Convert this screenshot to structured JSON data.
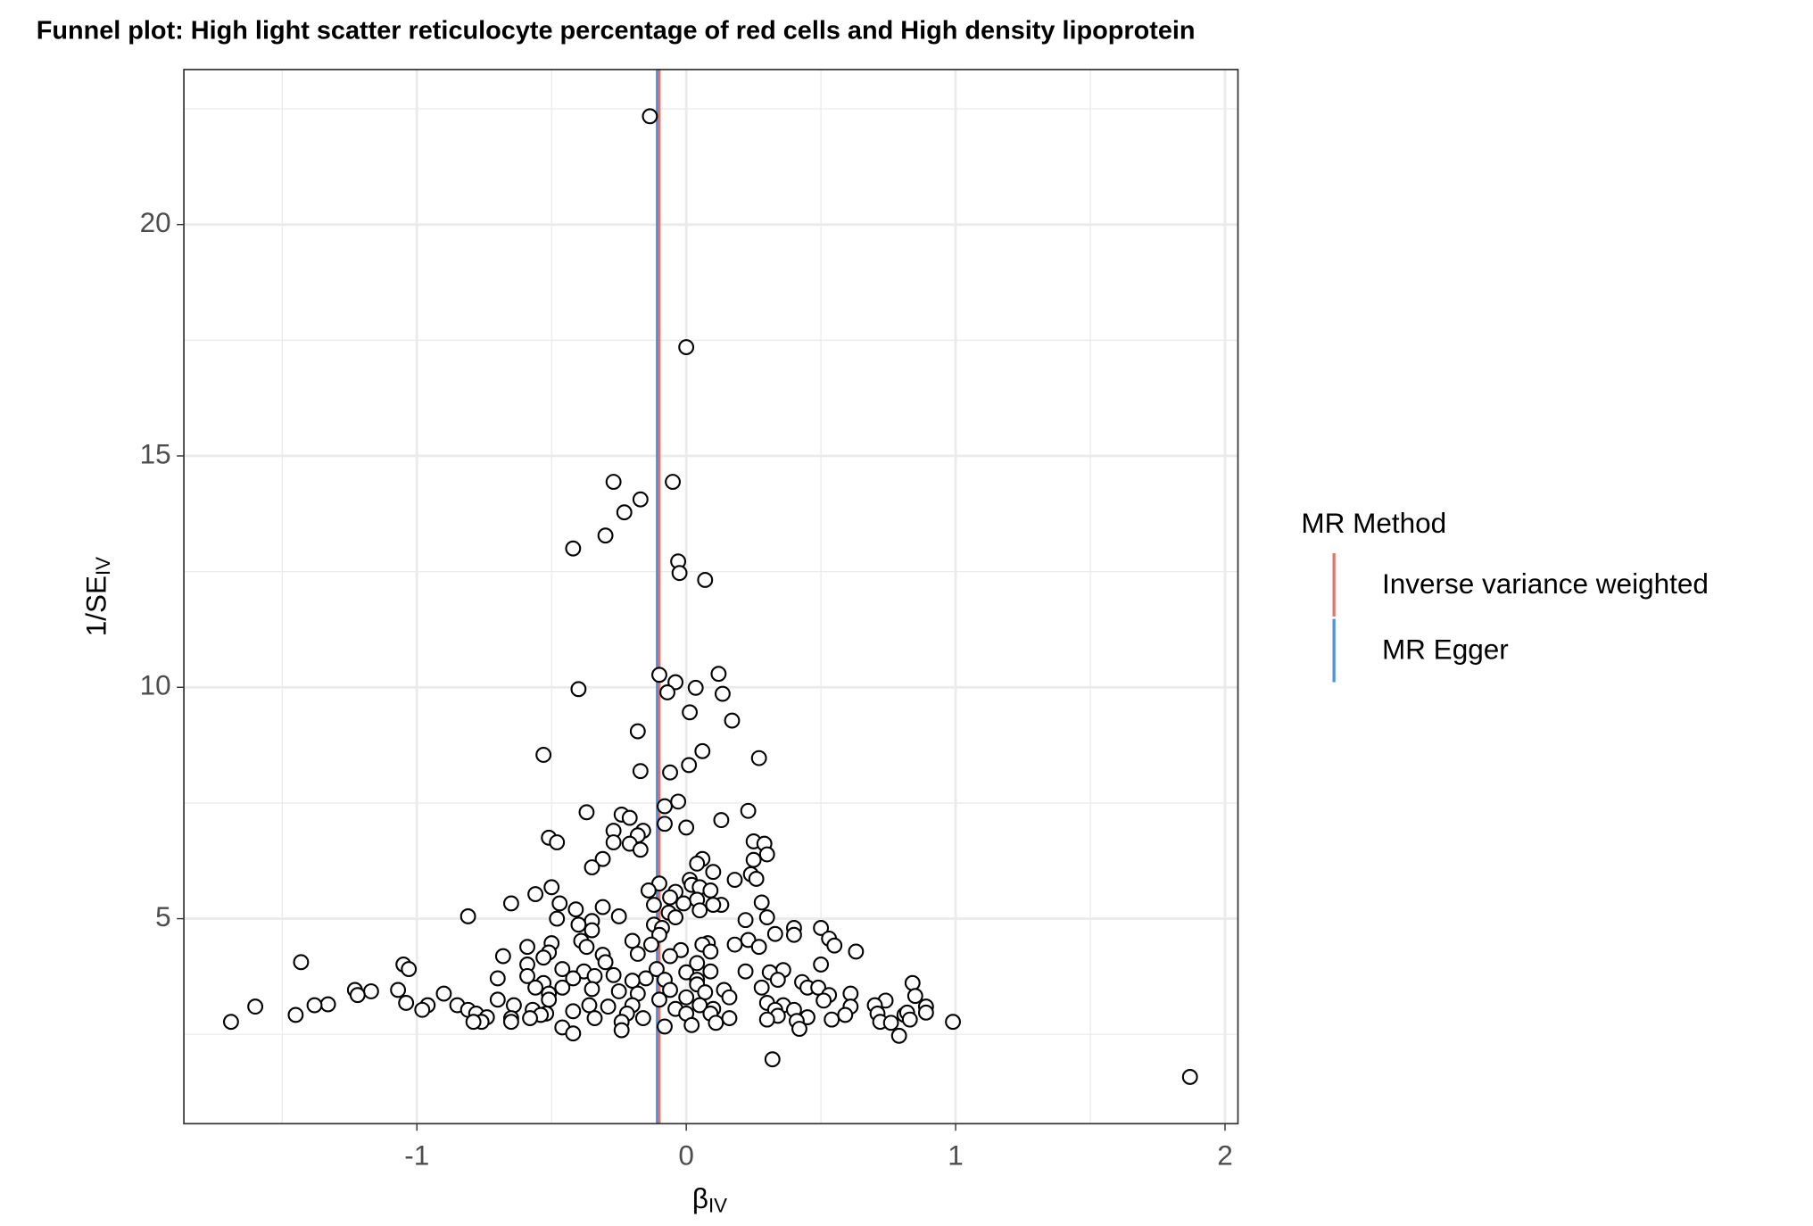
{
  "chart_data": {
    "type": "scatter",
    "title": "Funnel plot: High light scatter reticulocyte percentage of red cells and High density lipoprotein",
    "xlabel": {
      "main": "β",
      "sub": "IV"
    },
    "ylabel": {
      "main": "1/SE",
      "sub": "IV"
    },
    "xlim": [
      -1.865,
      2.048
    ],
    "ylim": [
      0.57,
      23.35
    ],
    "xticks": [
      -1,
      0,
      1,
      2
    ],
    "yticks": [
      5,
      10,
      15,
      20
    ],
    "xminor": [
      -1.5,
      -0.5,
      0.5,
      1.5
    ],
    "yminor": [
      2.5,
      7.5,
      12.5,
      17.5,
      22.5
    ],
    "grid": true,
    "legend_title": "MR Method",
    "legend_position": "right",
    "lines": [
      {
        "name": "Inverse variance weighted",
        "color": "#e0766a",
        "x": -0.1
      },
      {
        "name": "MR Egger",
        "color": "#4f8fe6",
        "x": -0.108
      }
    ],
    "x": [
      -0.135,
      0,
      -0.27,
      -0.05,
      -0.17,
      -0.23,
      -0.42,
      -0.3,
      -0.03,
      -0.025,
      0.07,
      -0.1,
      0.12,
      -0.04,
      0.035,
      -0.4,
      -0.07,
      0.135,
      0.013,
      0.17,
      -0.18,
      0.06,
      -0.53,
      0.27,
      0.01,
      -0.17,
      -0.06,
      -0.03,
      -0.08,
      -0.37,
      0.23,
      0.13,
      -0.24,
      -0.21,
      0,
      -0.08,
      -0.16,
      -0.27,
      -0.51,
      -0.48,
      -0.18,
      -0.27,
      -0.21,
      0.25,
      0.29,
      -0.17,
      0.3,
      0.25,
      0.06,
      -0.31,
      0.04,
      -0.35,
      0.1,
      0.24,
      0.18,
      0.26,
      0.013,
      -0.1,
      0.02,
      0.05,
      -0.5,
      -0.14,
      -0.04,
      0.09,
      -0.56,
      -0.06,
      0.04,
      -0.01,
      0.13,
      -0.65,
      0.1,
      0.28,
      -0.47,
      -0.31,
      -0.41,
      -0.12,
      0.05,
      -0.065,
      0.3,
      0.22,
      -0.81,
      -0.48,
      -0.25,
      -0.35,
      -0.04,
      -0.4,
      -0.12,
      -0.09,
      0.5,
      0.4,
      -0.35,
      0.4,
      0.33,
      0.53,
      -0.1,
      -0.5,
      -0.2,
      0.08,
      -0.39,
      0.55,
      0.18,
      0.23,
      -0.37,
      -0.13,
      -0.59,
      0.06,
      0.63,
      -0.51,
      0.27,
      -0.02,
      0.09,
      -0.06,
      -0.53,
      -0.68,
      -0.31,
      -0.18,
      -1.43,
      -1.05,
      -0.59,
      0.5,
      -0.3,
      0.04,
      -1.03,
      -0.46,
      -0.11,
      -0.38,
      0.09,
      0.22,
      0.36,
      0.31,
      0,
      -0.27,
      -0.34,
      -0.59,
      -0.42,
      -0.7,
      -0.15,
      -0.08,
      0.04,
      0.34,
      0.43,
      0.84,
      -0.53,
      0.04,
      -0.2,
      -0.56,
      0.45,
      0.28,
      -0.46,
      -0.35,
      -0.06,
      0.49,
      0.14,
      -1.07,
      -1.23,
      -1.17,
      -0.9,
      -0.25,
      -0.51,
      0.07,
      0.53,
      0.61,
      -0.18,
      -1.22,
      0.16,
      0.85,
      0,
      -0.1,
      -0.7,
      -0.51,
      0.74,
      0.51,
      -1.04,
      0.3,
      -0.96,
      -1.6,
      -1.33,
      -1.38,
      0.36,
      -0.64,
      -0.85,
      -0.36,
      0.05,
      0.89,
      0.7,
      -0.2,
      0.61,
      -0.29,
      -0.04,
      0.1,
      -0.98,
      -0.81,
      -0.57,
      -0.42,
      0.33,
      0.4,
      0.71,
      -0.52,
      -0.22,
      0,
      0.09,
      -1.45,
      -0.78,
      0.81,
      0.89,
      0.82,
      0.59,
      -0.54,
      -0.65,
      0.34,
      0.45,
      -0.74,
      0.16,
      -0.34,
      -0.16,
      -0.58,
      0.3,
      0.83,
      0.41,
      0.54,
      -1.69,
      0.99,
      0.72,
      -0.76,
      -0.79,
      -0.65,
      -0.24,
      -0.08,
      0.02,
      0.11,
      0.76,
      -0.46,
      0.42,
      -0.24,
      -0.42,
      0.79,
      0.32,
      1.87
    ],
    "values": [
      22.34,
      17.35,
      14.44,
      14.44,
      14.06,
      13.78,
      13,
      13.28,
      12.72,
      12.47,
      12.32,
      10.27,
      10.29,
      10.11,
      9.99,
      9.96,
      9.89,
      9.86,
      9.46,
      9.28,
      9.05,
      8.62,
      8.54,
      8.47,
      8.32,
      8.19,
      8.16,
      7.53,
      7.43,
      7.3,
      7.33,
      7.13,
      7.25,
      7.18,
      6.97,
      7.05,
      6.9,
      6.9,
      6.75,
      6.65,
      6.8,
      6.65,
      6.62,
      6.67,
      6.62,
      6.49,
      6.39,
      6.27,
      6.29,
      6.29,
      6.19,
      6.11,
      6.01,
      5.96,
      5.84,
      5.86,
      5.84,
      5.76,
      5.73,
      5.68,
      5.68,
      5.61,
      5.58,
      5.61,
      5.53,
      5.46,
      5.41,
      5.33,
      5.3,
      5.33,
      5.3,
      5.35,
      5.33,
      5.25,
      5.2,
      5.3,
      5.18,
      5.13,
      5.03,
      4.97,
      5.05,
      5,
      5.05,
      4.95,
      5.03,
      4.87,
      4.87,
      4.8,
      4.8,
      4.8,
      4.75,
      4.65,
      4.67,
      4.57,
      4.65,
      4.47,
      4.52,
      4.47,
      4.52,
      4.42,
      4.44,
      4.54,
      4.39,
      4.44,
      4.39,
      4.44,
      4.29,
      4.27,
      4.39,
      4.32,
      4.29,
      4.19,
      4.16,
      4.19,
      4.22,
      4.24,
      4.06,
      4.01,
      4.01,
      4.01,
      4.06,
      4.04,
      3.91,
      3.91,
      3.91,
      3.86,
      3.86,
      3.86,
      3.89,
      3.84,
      3.84,
      3.78,
      3.76,
      3.76,
      3.71,
      3.71,
      3.71,
      3.68,
      3.68,
      3.68,
      3.63,
      3.61,
      3.61,
      3.58,
      3.66,
      3.51,
      3.51,
      3.51,
      3.51,
      3.48,
      3.46,
      3.51,
      3.46,
      3.46,
      3.46,
      3.43,
      3.38,
      3.43,
      3.38,
      3.41,
      3.35,
      3.38,
      3.38,
      3.35,
      3.3,
      3.33,
      3.3,
      3.25,
      3.25,
      3.25,
      3.23,
      3.23,
      3.18,
      3.18,
      3.13,
      3.1,
      3.15,
      3.13,
      3.13,
      3.13,
      3.13,
      3.13,
      3.13,
      3.1,
      3.13,
      3.13,
      3.1,
      3.1,
      3.05,
      3.05,
      3.03,
      3.03,
      3.03,
      3,
      3.03,
      3.03,
      2.95,
      2.95,
      2.95,
      2.95,
      2.95,
      2.92,
      2.95,
      2.92,
      2.97,
      2.97,
      2.92,
      2.92,
      2.85,
      2.9,
      2.87,
      2.87,
      2.85,
      2.85,
      2.85,
      2.85,
      2.82,
      2.82,
      2.79,
      2.82,
      2.77,
      2.77,
      2.77,
      2.77,
      2.77,
      2.77,
      2.77,
      2.67,
      2.7,
      2.75,
      2.75,
      2.65,
      2.62,
      2.59,
      2.52,
      2.47,
      1.96,
      1.58
    ]
  }
}
